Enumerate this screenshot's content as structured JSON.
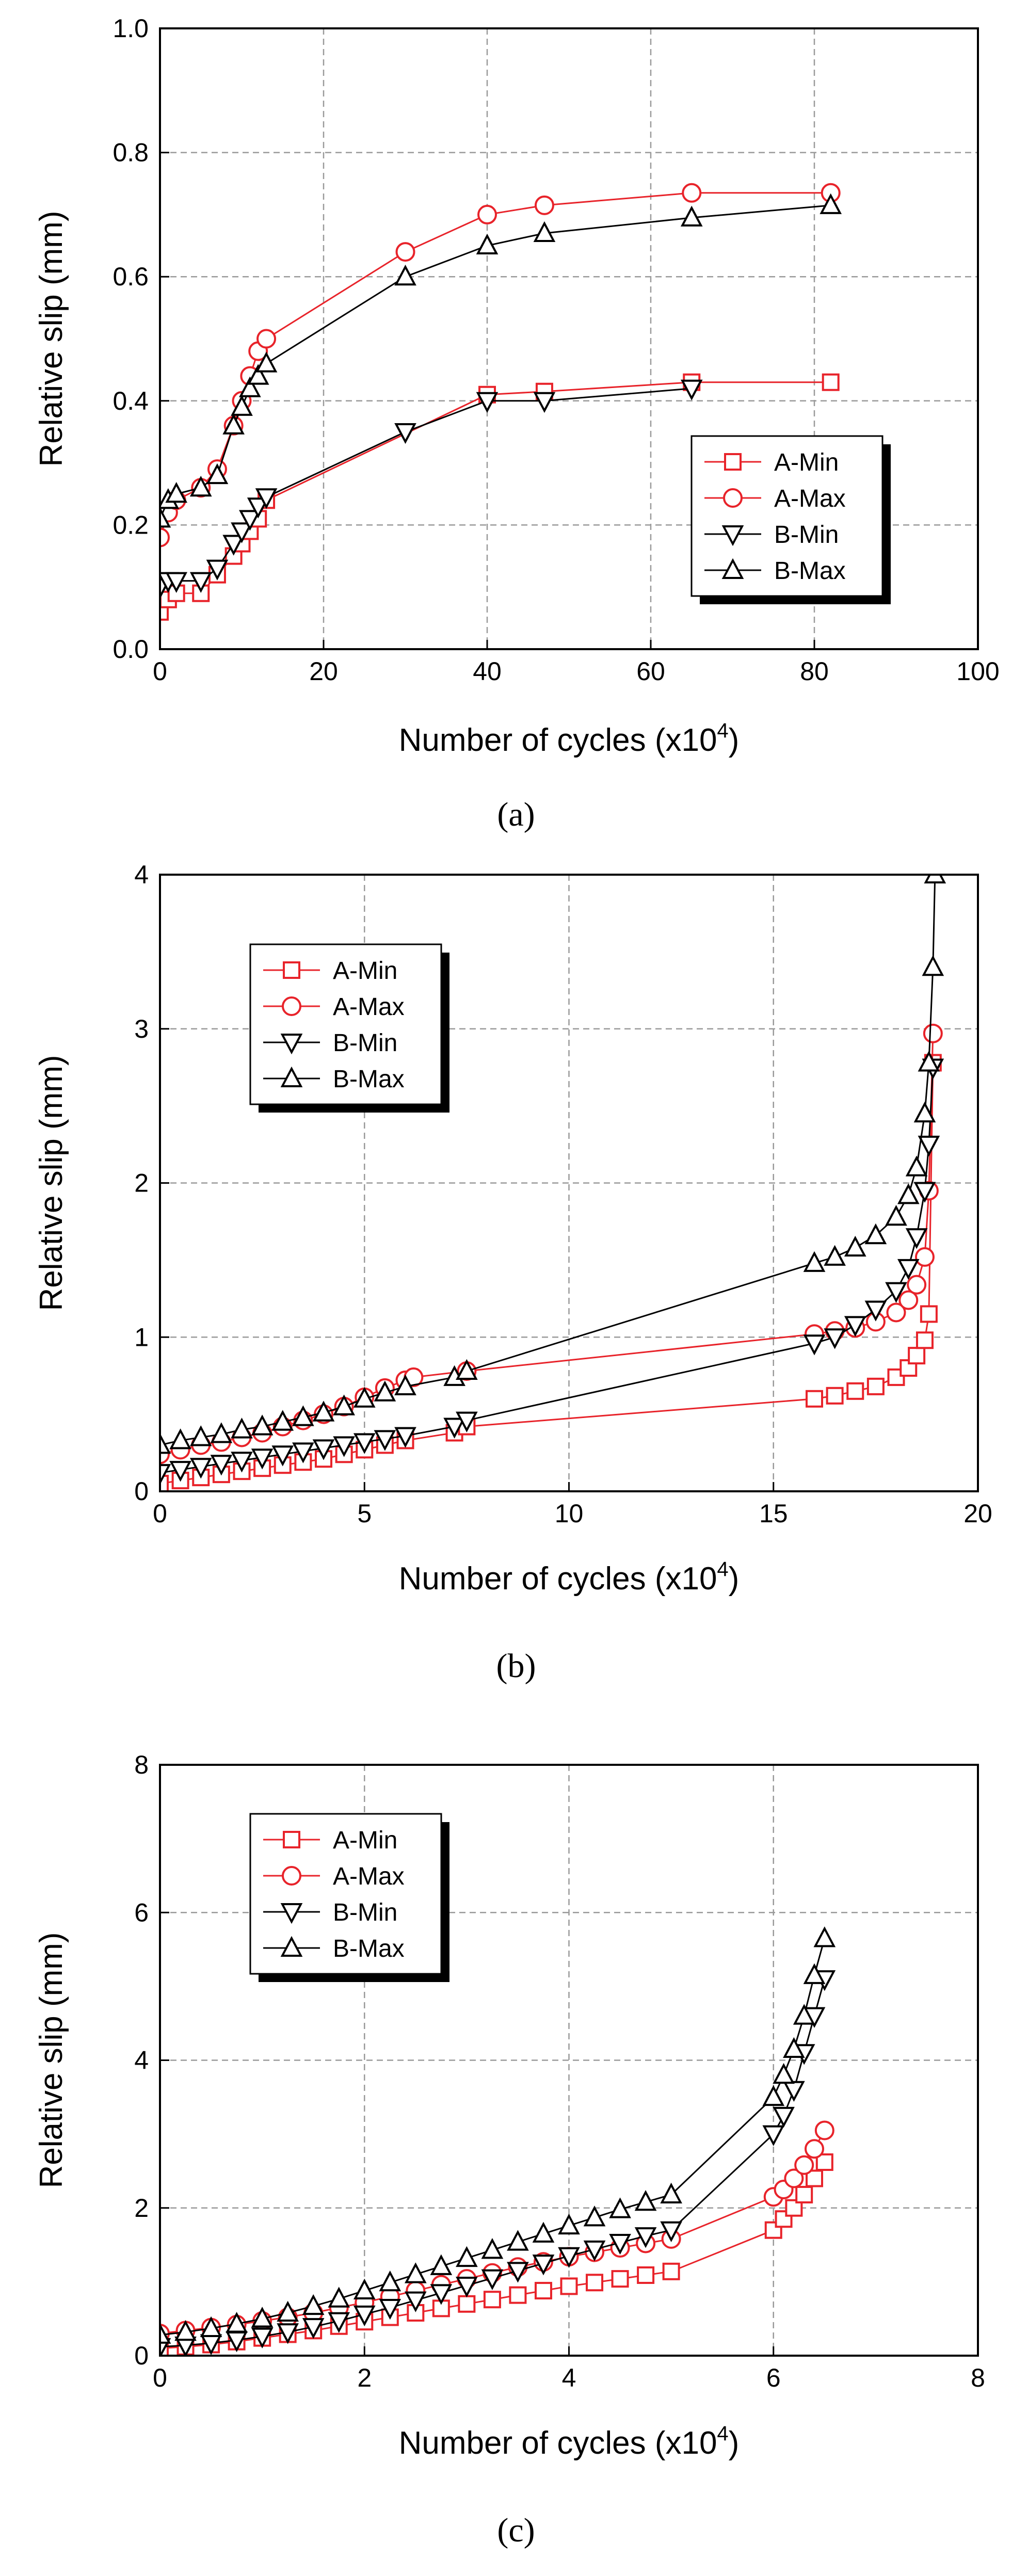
{
  "colors": {
    "seriesA": "#e8232a",
    "seriesB": "#000000",
    "grid": "#9a9a9a"
  },
  "chart_data": [
    {
      "type": "line",
      "caption": "(a)",
      "xlabel_main": "Number of cycles",
      "xlabel_unit": "(x10",
      "xlabel_exp": "4",
      "xlabel_close": ")",
      "ylabel": "Relative slip (mm)",
      "xlim": [
        0,
        100
      ],
      "ylim": [
        0,
        1.0
      ],
      "xticks": [
        "0",
        "20",
        "40",
        "60",
        "80",
        "100"
      ],
      "yticks": [
        "0.0",
        "0.2",
        "0.4",
        "0.6",
        "0.8",
        "1.0"
      ],
      "grid": true,
      "legend_position": "right-middle",
      "series": [
        {
          "name": "A-Min",
          "marker": "square",
          "color": "#e8232a",
          "x": [
            0,
            1,
            2,
            5,
            7,
            9,
            10,
            11,
            12,
            13,
            40,
            47,
            65,
            82
          ],
          "y": [
            0.06,
            0.08,
            0.09,
            0.09,
            0.12,
            0.15,
            0.17,
            0.19,
            0.21,
            0.24,
            0.41,
            0.415,
            0.43,
            0.43
          ]
        },
        {
          "name": "A-Max",
          "marker": "circle",
          "color": "#e8232a",
          "x": [
            0,
            1,
            2,
            5,
            7,
            9,
            10,
            11,
            12,
            13,
            30,
            40,
            47,
            65,
            82
          ],
          "y": [
            0.18,
            0.22,
            0.24,
            0.26,
            0.29,
            0.36,
            0.4,
            0.44,
            0.48,
            0.5,
            0.64,
            0.7,
            0.715,
            0.735,
            0.735
          ]
        },
        {
          "name": "B-Min",
          "marker": "triangle-down",
          "color": "#000000",
          "x": [
            0,
            1,
            2,
            5,
            7,
            9,
            10,
            11,
            12,
            13,
            30,
            40,
            47,
            65
          ],
          "y": [
            0.1,
            0.11,
            0.11,
            0.11,
            0.13,
            0.17,
            0.19,
            0.21,
            0.23,
            0.245,
            0.35,
            0.4,
            0.4,
            0.42
          ]
        },
        {
          "name": "B-Max",
          "marker": "triangle-up",
          "color": "#000000",
          "x": [
            0,
            1,
            2,
            5,
            7,
            9,
            10,
            11,
            12,
            13,
            30,
            40,
            47,
            65,
            82
          ],
          "y": [
            0.21,
            0.24,
            0.25,
            0.26,
            0.28,
            0.36,
            0.39,
            0.42,
            0.44,
            0.46,
            0.6,
            0.65,
            0.67,
            0.695,
            0.715
          ]
        }
      ]
    },
    {
      "type": "line",
      "caption": "(b)",
      "xlabel_main": "Number of cycles",
      "xlabel_unit": "(x10",
      "xlabel_exp": "4",
      "xlabel_close": ")",
      "ylabel": "Relative slip (mm)",
      "xlim": [
        0,
        20
      ],
      "ylim": [
        0,
        4
      ],
      "xticks": [
        "0",
        "5",
        "10",
        "15",
        "20"
      ],
      "yticks": [
        "0",
        "1",
        "2",
        "3",
        "4"
      ],
      "grid": true,
      "legend_position": "top-left",
      "series": [
        {
          "name": "A-Min",
          "marker": "square",
          "color": "#e8232a",
          "x": [
            0,
            0.5,
            1,
            1.5,
            2,
            2.5,
            3,
            3.5,
            4,
            4.5,
            5,
            5.5,
            6,
            7.2,
            7.5,
            16,
            16.5,
            17,
            17.5,
            18,
            18.3,
            18.5,
            18.7,
            18.8,
            18.9
          ],
          "y": [
            0.05,
            0.07,
            0.09,
            0.11,
            0.13,
            0.15,
            0.17,
            0.19,
            0.21,
            0.24,
            0.27,
            0.3,
            0.33,
            0.38,
            0.42,
            0.6,
            0.62,
            0.65,
            0.68,
            0.74,
            0.8,
            0.88,
            0.98,
            1.15,
            2.78
          ]
        },
        {
          "name": "A-Max",
          "marker": "circle",
          "color": "#e8232a",
          "x": [
            0,
            0.5,
            1,
            1.5,
            2,
            2.5,
            3,
            3.5,
            4,
            4.5,
            5,
            5.5,
            6,
            6.2,
            7.5,
            16,
            16.5,
            17,
            17.5,
            18,
            18.3,
            18.5,
            18.7,
            18.8,
            18.9
          ],
          "y": [
            0.24,
            0.27,
            0.3,
            0.32,
            0.35,
            0.38,
            0.42,
            0.46,
            0.5,
            0.55,
            0.61,
            0.67,
            0.72,
            0.74,
            0.78,
            1.02,
            1.04,
            1.06,
            1.1,
            1.16,
            1.24,
            1.34,
            1.52,
            1.95,
            2.97
          ]
        },
        {
          "name": "B-Min",
          "marker": "triangle-down",
          "color": "#000000",
          "x": [
            0,
            0.5,
            1,
            1.5,
            2,
            2.5,
            3,
            3.5,
            4,
            4.5,
            5,
            5.5,
            6,
            7.2,
            7.5,
            16,
            16.5,
            17,
            17.5,
            18,
            18.3,
            18.5,
            18.7,
            18.8,
            18.9
          ],
          "y": [
            0.12,
            0.14,
            0.16,
            0.18,
            0.2,
            0.22,
            0.24,
            0.26,
            0.28,
            0.3,
            0.32,
            0.34,
            0.36,
            0.42,
            0.46,
            0.96,
            1.0,
            1.08,
            1.18,
            1.3,
            1.45,
            1.65,
            1.95,
            2.25,
            2.75
          ]
        },
        {
          "name": "B-Max",
          "marker": "triangle-up",
          "color": "#000000",
          "x": [
            0,
            0.5,
            1,
            1.5,
            2,
            2.5,
            3,
            3.5,
            4,
            4.5,
            5,
            5.5,
            6,
            7.2,
            7.5,
            16,
            16.5,
            17,
            17.5,
            18,
            18.3,
            18.5,
            18.7,
            18.8,
            18.9,
            18.95
          ],
          "y": [
            0.3,
            0.33,
            0.35,
            0.37,
            0.4,
            0.42,
            0.45,
            0.48,
            0.51,
            0.55,
            0.6,
            0.64,
            0.68,
            0.74,
            0.78,
            1.48,
            1.52,
            1.58,
            1.66,
            1.78,
            1.92,
            2.1,
            2.45,
            2.78,
            3.4,
            4.0
          ]
        }
      ]
    },
    {
      "type": "line",
      "caption": "(c)",
      "xlabel_main": "Number of cycles",
      "xlabel_unit": "(x10",
      "xlabel_exp": "4",
      "xlabel_close": ")",
      "ylabel": "Relative slip (mm)",
      "xlim": [
        0,
        8
      ],
      "ylim": [
        0,
        8
      ],
      "xticks": [
        "0",
        "2",
        "4",
        "6",
        "8"
      ],
      "yticks": [
        "0",
        "2",
        "4",
        "6",
        "8"
      ],
      "grid": true,
      "legend_position": "top-left",
      "series": [
        {
          "name": "A-Min",
          "marker": "square",
          "color": "#e8232a",
          "x": [
            0,
            0.25,
            0.5,
            0.75,
            1,
            1.25,
            1.5,
            1.75,
            2,
            2.25,
            2.5,
            2.75,
            3,
            3.25,
            3.5,
            3.75,
            4,
            4.25,
            4.5,
            4.75,
            5,
            6,
            6.1,
            6.2,
            6.3,
            6.4,
            6.5
          ],
          "y": [
            0.1,
            0.12,
            0.15,
            0.19,
            0.24,
            0.29,
            0.34,
            0.4,
            0.46,
            0.52,
            0.58,
            0.64,
            0.7,
            0.76,
            0.82,
            0.88,
            0.94,
            0.99,
            1.04,
            1.09,
            1.14,
            1.7,
            1.85,
            2.0,
            2.18,
            2.4,
            2.62
          ]
        },
        {
          "name": "A-Max",
          "marker": "circle",
          "color": "#e8232a",
          "x": [
            0,
            0.25,
            0.5,
            0.75,
            1,
            1.25,
            1.5,
            1.75,
            2,
            2.25,
            2.5,
            2.75,
            3,
            3.25,
            3.5,
            3.75,
            4,
            4.25,
            4.5,
            4.75,
            5,
            6,
            6.1,
            6.2,
            6.3,
            6.4,
            6.5
          ],
          "y": [
            0.3,
            0.34,
            0.38,
            0.42,
            0.47,
            0.52,
            0.58,
            0.65,
            0.72,
            0.8,
            0.88,
            0.96,
            1.04,
            1.12,
            1.2,
            1.27,
            1.34,
            1.4,
            1.46,
            1.52,
            1.58,
            2.15,
            2.25,
            2.4,
            2.58,
            2.8,
            3.05
          ]
        },
        {
          "name": "B-Min",
          "marker": "triangle-down",
          "color": "#000000",
          "x": [
            0,
            0.25,
            0.5,
            0.75,
            1,
            1.25,
            1.5,
            1.75,
            2,
            2.25,
            2.5,
            2.75,
            3,
            3.25,
            3.5,
            3.75,
            4,
            4.25,
            4.5,
            4.75,
            5,
            6,
            6.1,
            6.2,
            6.3,
            6.4,
            6.5
          ],
          "y": [
            0.12,
            0.14,
            0.17,
            0.21,
            0.26,
            0.32,
            0.39,
            0.47,
            0.56,
            0.65,
            0.75,
            0.85,
            0.95,
            1.05,
            1.15,
            1.25,
            1.35,
            1.44,
            1.53,
            1.62,
            1.7,
            3.0,
            3.25,
            3.6,
            4.1,
            4.6,
            5.1
          ]
        },
        {
          "name": "B-Max",
          "marker": "triangle-up",
          "color": "#000000",
          "x": [
            0,
            0.25,
            0.5,
            0.75,
            1,
            1.25,
            1.5,
            1.75,
            2,
            2.25,
            2.5,
            2.75,
            3,
            3.25,
            3.5,
            3.75,
            4,
            4.25,
            4.5,
            4.75,
            5,
            6,
            6.1,
            6.2,
            6.3,
            6.4,
            6.5
          ],
          "y": [
            0.28,
            0.32,
            0.37,
            0.43,
            0.5,
            0.58,
            0.67,
            0.77,
            0.88,
            0.99,
            1.1,
            1.21,
            1.32,
            1.43,
            1.54,
            1.65,
            1.76,
            1.87,
            1.98,
            2.08,
            2.18,
            3.5,
            3.8,
            4.15,
            4.6,
            5.15,
            5.65
          ]
        }
      ]
    }
  ]
}
